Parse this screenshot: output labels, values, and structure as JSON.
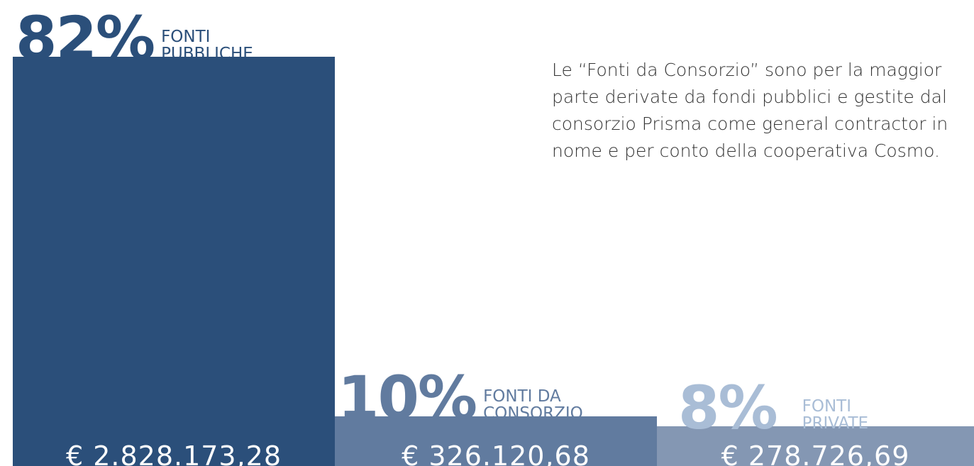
{
  "chart_data": {
    "type": "bar",
    "categories": [
      "FONTI PUBBLICHE",
      "FONTI DA CONSORZIO",
      "FONTI PRIVATE"
    ],
    "values": [
      82,
      10,
      8
    ],
    "value_labels": [
      "82%",
      "10%",
      "8%"
    ],
    "amounts": [
      "€ 2.828.173,28",
      "€ 326.120,68",
      "€ 278.726,69"
    ],
    "colors": [
      "#2b4f7a",
      "#617b9f",
      "#8497b3"
    ],
    "label_colors": [
      "#2b4f7a",
      "#617b9f",
      "#a9bdd6"
    ],
    "note": [
      "Le “Fonti da Consorzio” sono per la maggior",
      "parte derivate da fondi pubblici e gestite dal",
      "consorzio Prisma come general contractor in",
      "nome e per conto della cooperativa Cosmo."
    ]
  }
}
